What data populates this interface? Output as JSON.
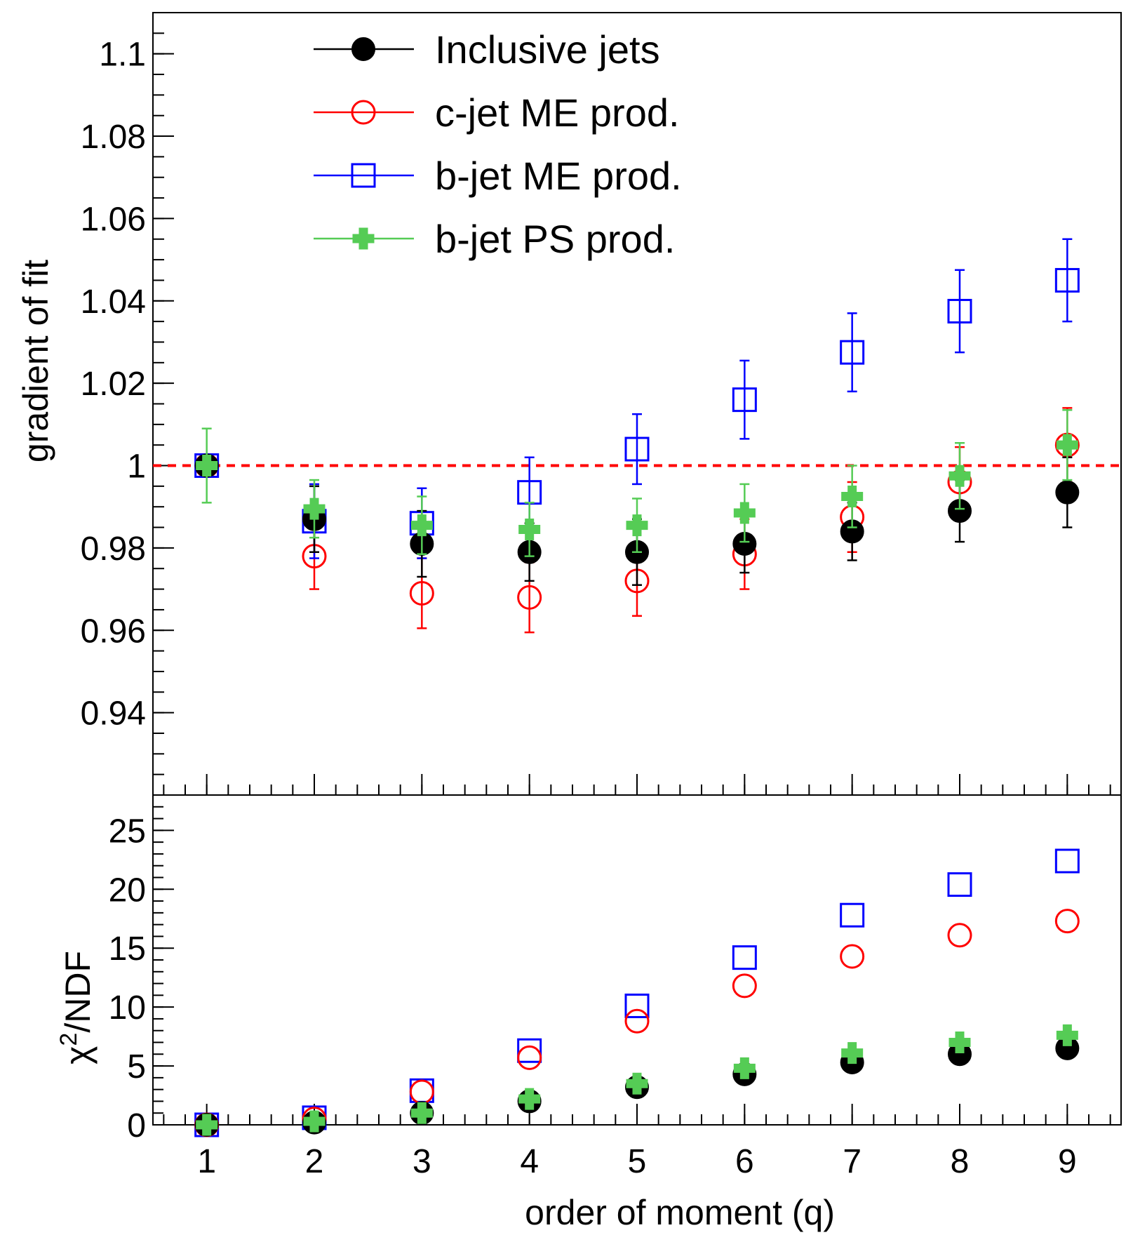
{
  "chart_data": [
    {
      "type": "scatter",
      "panel": "top",
      "xlabel": "",
      "ylabel": "gradient of fit",
      "xlim": [
        0.5,
        9.5
      ],
      "ylim": [
        0.92,
        1.11
      ],
      "y_tick_labels": [
        "0.94",
        "0.96",
        "0.98",
        "1",
        "1.02",
        "1.04",
        "1.06",
        "1.08",
        "1.1"
      ],
      "reference_line": {
        "y": 1.0,
        "style": "dashed",
        "color": "#ff0000"
      },
      "legend": {
        "placement": "top-left"
      },
      "categories": [
        1,
        2,
        3,
        4,
        5,
        6,
        7,
        8,
        9
      ],
      "series": [
        {
          "name": "Inclusive jets",
          "color": "#000000",
          "marker": "filled-circle",
          "values": [
            1.0,
            0.987,
            0.981,
            0.979,
            0.979,
            0.981,
            0.984,
            0.989,
            0.9935
          ],
          "errors": [
            0.0,
            0.008,
            0.008,
            0.007,
            0.008,
            0.007,
            0.007,
            0.0075,
            0.0085
          ]
        },
        {
          "name": "c-jet ME prod.",
          "color": "#ff0000",
          "marker": "open-circle",
          "values": [
            1.0,
            0.978,
            0.969,
            0.968,
            0.972,
            0.9785,
            0.9875,
            0.996,
            1.005
          ],
          "errors": [
            0.0,
            0.008,
            0.0085,
            0.0085,
            0.0085,
            0.0085,
            0.0085,
            0.0085,
            0.009
          ]
        },
        {
          "name": "b-jet ME prod.",
          "color": "#0000ff",
          "marker": "open-square",
          "values": [
            1.0,
            0.9865,
            0.986,
            0.9935,
            1.004,
            1.016,
            1.0275,
            1.0375,
            1.045
          ],
          "errors": [
            0.0,
            0.009,
            0.0085,
            0.0085,
            0.0085,
            0.0095,
            0.0095,
            0.01,
            0.01
          ]
        },
        {
          "name": "b-jet PS prod.",
          "color": "#55cc55",
          "marker": "filled-cross",
          "values": [
            1.0,
            0.9895,
            0.9855,
            0.9845,
            0.9855,
            0.9885,
            0.9925,
            0.9975,
            1.005
          ],
          "errors": [
            0.009,
            0.007,
            0.007,
            0.0065,
            0.0065,
            0.007,
            0.0075,
            0.008,
            0.0085
          ]
        }
      ]
    },
    {
      "type": "scatter",
      "panel": "bottom",
      "xlabel": "order of moment (q)",
      "ylabel": "χ²/NDF",
      "ylabel_main": "χ",
      "ylabel_sup": "2",
      "ylabel_rest": "/NDF",
      "xlim": [
        0.5,
        9.5
      ],
      "ylim": [
        0,
        28
      ],
      "x_tick_labels": [
        "1",
        "2",
        "3",
        "4",
        "5",
        "6",
        "7",
        "8",
        "9"
      ],
      "y_tick_labels": [
        "0",
        "5",
        "10",
        "15",
        "20",
        "25"
      ],
      "categories": [
        1,
        2,
        3,
        4,
        5,
        6,
        7,
        8,
        9
      ],
      "series": [
        {
          "name": "Inclusive jets",
          "color": "#000000",
          "marker": "filled-circle",
          "values": [
            0.0,
            0.2,
            1.0,
            2.0,
            3.2,
            4.3,
            5.3,
            6.0,
            6.5
          ]
        },
        {
          "name": "c-jet ME prod.",
          "color": "#ff0000",
          "marker": "open-circle",
          "values": [
            0.0,
            0.5,
            2.8,
            5.7,
            8.8,
            11.8,
            14.3,
            16.1,
            17.3
          ]
        },
        {
          "name": "b-jet ME prod.",
          "color": "#0000ff",
          "marker": "open-square",
          "values": [
            0.0,
            0.6,
            2.9,
            6.3,
            10.1,
            14.2,
            17.8,
            20.4,
            22.4
          ]
        },
        {
          "name": "b-jet PS prod.",
          "color": "#55cc55",
          "marker": "filled-cross",
          "values": [
            0.0,
            0.3,
            1.0,
            2.2,
            3.5,
            4.8,
            6.1,
            7.0,
            7.6
          ]
        }
      ]
    }
  ]
}
